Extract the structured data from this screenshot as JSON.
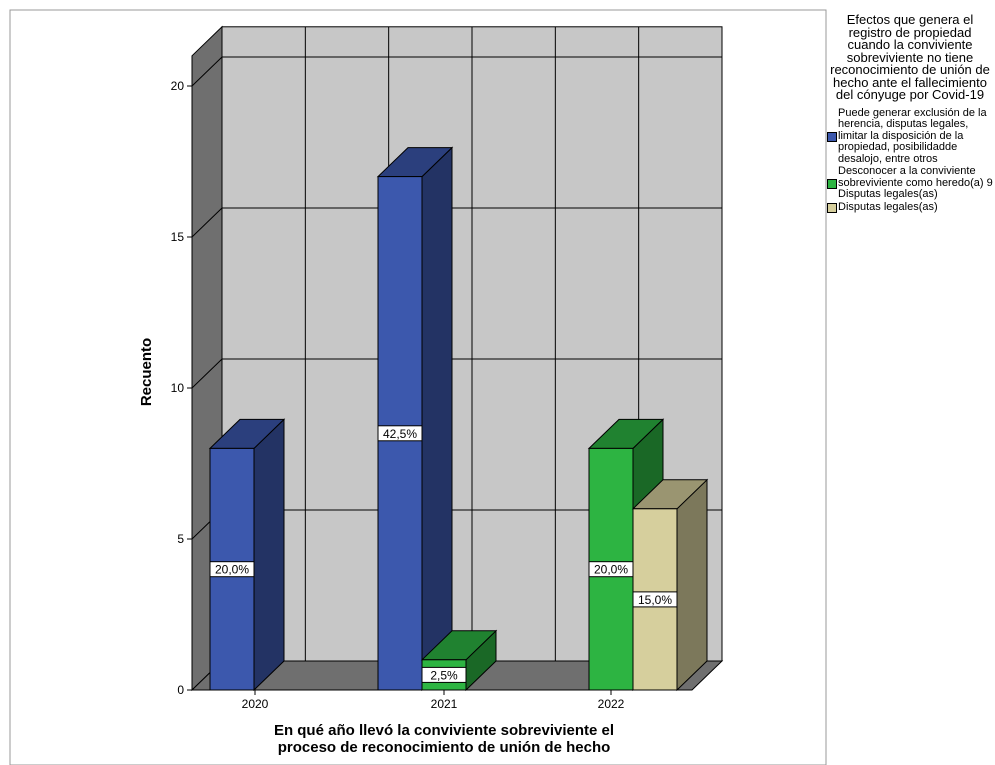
{
  "chart_data": {
    "type": "bar",
    "categories": [
      "2020",
      "2021",
      "2022"
    ],
    "xlabel": "En qué año llevó la conviviente sobreviviente el proceso de reconocimiento de unión de hecho",
    "ylabel": "Recuento",
    "ylim": [
      0,
      21
    ],
    "yticks": [
      0,
      5,
      10,
      15,
      20
    ],
    "grid": true,
    "legend_position": "right",
    "legend_title": "Efectos que genera el registro de propiedad cuando la conviviente sobreviviente no tiene reconocimiento de unión de hecho ante el fallecimiento del cónyuge por Covid-19",
    "series": [
      {
        "name": "Puede generar exclusión de la herencia, disputas legales, limitar la disposición de la propiedad, posibilidadde desalojo, entre otros",
        "color": "#3c58ad",
        "values": [
          8,
          17,
          null
        ],
        "labels": [
          "20,0%",
          "42,5%",
          null
        ]
      },
      {
        "name": "Desconocer a la conviviente sobreviviente como heredo(a) 9 Disputas legales(as)",
        "color": "#2db442",
        "values": [
          null,
          1,
          8
        ],
        "labels": [
          null,
          "2,5%",
          "20,0%"
        ]
      },
      {
        "name": "Disputas legales(as)",
        "color": "#d6cf9d",
        "values": [
          null,
          null,
          6
        ],
        "labels": [
          null,
          null,
          "15,0%"
        ]
      }
    ]
  }
}
